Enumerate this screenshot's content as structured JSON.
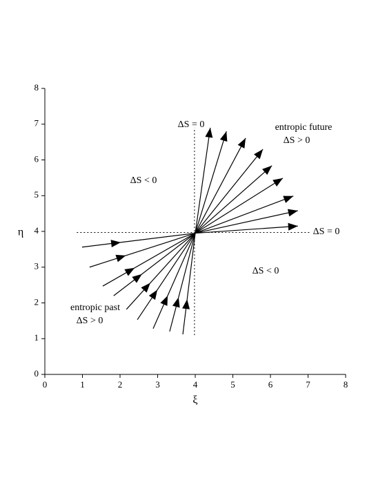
{
  "chart_data": {
    "type": "vector",
    "xlabel": "ξ",
    "ylabel": "η",
    "xlim": [
      0,
      8
    ],
    "ylim": [
      0,
      8
    ],
    "xticks": [
      0,
      1,
      2,
      3,
      4,
      5,
      6,
      7,
      8
    ],
    "yticks": [
      0,
      1,
      2,
      3,
      4,
      5,
      6,
      7,
      8
    ],
    "color": "#000000",
    "reference_lines": [
      {
        "x": [
          0.85,
          7.05
        ],
        "y": [
          3.97,
          3.97
        ]
      },
      {
        "x": [
          3.98,
          3.98
        ],
        "y": [
          1.1,
          6.9
        ]
      }
    ],
    "vectors": [
      {
        "head": "end",
        "x0": [
          4.0,
          4.0,
          4.0,
          4.0,
          4.0,
          4.0,
          4.0,
          4.0,
          4.0
        ],
        "y0": [
          3.95,
          3.95,
          3.95,
          3.95,
          3.95,
          3.95,
          3.95,
          3.95,
          3.95
        ],
        "x1": [
          4.4,
          4.83,
          5.34,
          5.8,
          6.04,
          6.33,
          6.61,
          6.73,
          6.73
        ],
        "y1": [
          6.9,
          6.8,
          6.61,
          6.3,
          5.84,
          5.49,
          4.99,
          4.58,
          4.15
        ]
      },
      {
        "head": "middle",
        "x0": [
          0.99,
          1.19,
          1.54,
          1.83,
          2.17,
          2.46,
          2.88,
          3.32,
          3.67
        ],
        "y0": [
          3.56,
          3.0,
          2.47,
          2.2,
          1.82,
          1.53,
          1.28,
          1.2,
          1.12
        ],
        "x1": [
          4.0,
          4.0,
          4.0,
          4.0,
          4.0,
          4.0,
          4.0,
          4.0,
          4.0
        ],
        "y1": [
          3.95,
          3.95,
          3.95,
          3.95,
          3.95,
          3.95,
          3.95,
          3.95,
          3.95
        ]
      }
    ],
    "annotations": [
      "ΔS = 0",
      "entropic future",
      "ΔS > 0",
      "ΔS < 0",
      "ΔS = 0",
      "ΔS < 0",
      "entropic past",
      "ΔS > 0"
    ]
  }
}
